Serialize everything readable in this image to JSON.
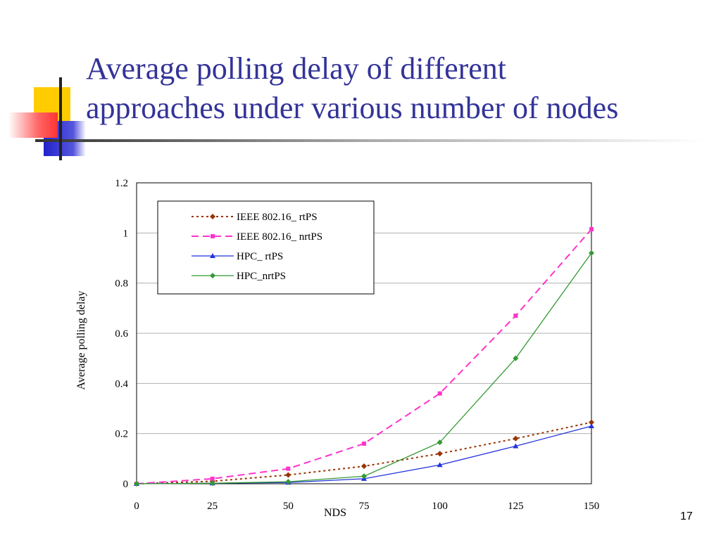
{
  "slide": {
    "title_line1": "Average polling delay of different",
    "title_line2": "approaches under various number of nodes",
    "page_number": "17"
  },
  "colors": {
    "title": "#333399",
    "deco_yellow": "#ffcc00",
    "deco_blue": "#3333cc",
    "deco_red": "#ff3333"
  },
  "chart_data": {
    "type": "line",
    "xlabel": "NDS",
    "ylabel": "Average polling delay",
    "x": [
      0,
      25,
      50,
      75,
      100,
      125,
      150
    ],
    "x_ticks": [
      "0",
      "25",
      "50",
      "75",
      "100",
      "125",
      "150"
    ],
    "y_ticks": [
      "0",
      "0.2",
      "0.4",
      "0.6",
      "0.8",
      "1",
      "1.2"
    ],
    "xlim": [
      0,
      150
    ],
    "ylim": [
      0,
      1.2
    ],
    "grid": "horizontal",
    "legend_position": "top-left",
    "series": [
      {
        "name": "IEEE 802.16_ rtPS",
        "color": "#993300",
        "dash": "3,4",
        "marker": "diamond",
        "values": [
          0,
          0.01,
          0.035,
          0.07,
          0.12,
          0.18,
          0.245
        ]
      },
      {
        "name": "IEEE 802.16_ nrtPS",
        "color": "#ff33cc",
        "dash": "10,6",
        "marker": "square",
        "values": [
          0,
          0.02,
          0.06,
          0.16,
          0.36,
          0.67,
          1.015
        ]
      },
      {
        "name": "HPC_ rtPS",
        "color": "#2233dd",
        "dash": "",
        "marker": "triangle",
        "values": [
          0,
          0.002,
          0.005,
          0.02,
          0.075,
          0.15,
          0.23
        ]
      },
      {
        "name": "HPC_nrtPS",
        "color": "#339933",
        "dash": "",
        "marker": "diamond",
        "values": [
          0,
          0.002,
          0.008,
          0.03,
          0.165,
          0.5,
          0.92
        ]
      }
    ]
  }
}
